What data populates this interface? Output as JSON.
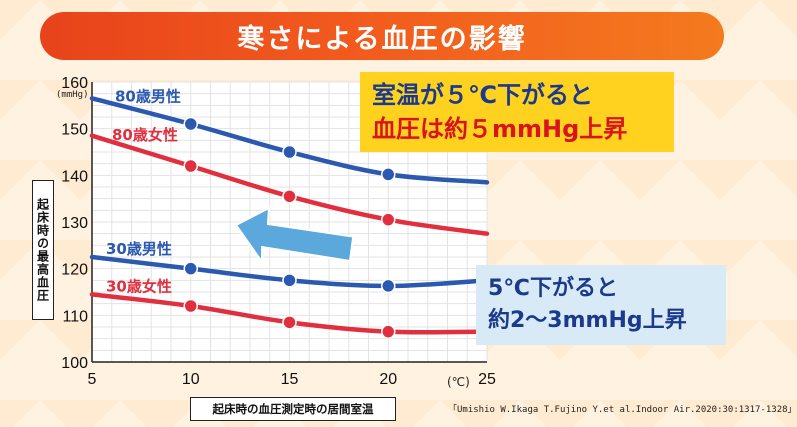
{
  "header": {
    "title": "寒さによる血圧の影響"
  },
  "callouts": {
    "room_temp_line1": "室温が５℃下がると",
    "room_temp_line2": "血圧は約５mmHg上昇",
    "young_line1": "5℃下がると",
    "young_line2": "約2～3mmHg上昇"
  },
  "citation": "「Umishio W.Ikaga T.Fujino Y.et al.Indoor Air.2020:30:1317-1328」",
  "colors": {
    "male": "#2b59b0",
    "female": "#e03040",
    "arrow": "#5aa8dc",
    "title_bar": "#f05a1f"
  },
  "chart_data": {
    "type": "line",
    "title": "寒さによる血圧の影響",
    "xlabel": "起床時の血圧測定時の居間室温",
    "ylabel": "起床時の最高血圧",
    "x_unit": "(℃)",
    "y_unit": "(mmHg)",
    "xlim": [
      5,
      25
    ],
    "ylim": [
      100,
      160
    ],
    "x_ticks": [
      5,
      10,
      15,
      20,
      25
    ],
    "y_ticks": [
      100,
      110,
      120,
      130,
      140,
      150,
      160
    ],
    "grid": true,
    "series": [
      {
        "name": "80歳男性",
        "color": "#2b59b0",
        "x": [
          5,
          10,
          15,
          20,
          25
        ],
        "y": [
          156.5,
          151,
          145,
          140.2,
          138.5
        ],
        "markers_x": [
          10,
          15,
          20
        ]
      },
      {
        "name": "80歳女性",
        "color": "#e03040",
        "x": [
          5,
          10,
          15,
          20,
          25
        ],
        "y": [
          148.5,
          142,
          135.5,
          130.5,
          127.5
        ],
        "markers_x": [
          10,
          15,
          20
        ]
      },
      {
        "name": "30歳男性",
        "color": "#2b59b0",
        "x": [
          5,
          10,
          15,
          20,
          25
        ],
        "y": [
          122.5,
          120,
          117.5,
          116.3,
          117.5
        ],
        "markers_x": [
          10,
          15,
          20
        ]
      },
      {
        "name": "30歳女性",
        "color": "#e03040",
        "x": [
          5,
          10,
          15,
          20,
          25
        ],
        "y": [
          114.5,
          112,
          108.5,
          106.5,
          106.5
        ],
        "markers_x": [
          10,
          15,
          20
        ]
      }
    ]
  }
}
